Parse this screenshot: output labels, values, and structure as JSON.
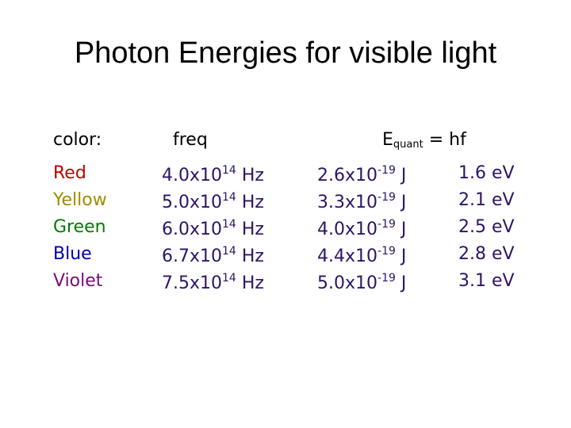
{
  "title": "Photon Energies for visible light",
  "header": {
    "color": "color:",
    "freq": "freq",
    "energy": {
      "symbol": "E",
      "subscript": "quant",
      "equation": "= hf"
    }
  },
  "rows": [
    {
      "color": "Red",
      "text_color": "#c00000",
      "freq": {
        "mantissa": "4.0x10",
        "exponent": "14",
        "unit": "Hz"
      },
      "energy_j": {
        "mantissa": "2.6x10",
        "exponent": "-19",
        "unit": "J"
      },
      "energy_ev": "1.6 eV"
    },
    {
      "color": "Yellow",
      "text_color": "#a08c00",
      "freq": {
        "mantissa": "5.0x10",
        "exponent": "14",
        "unit": "Hz"
      },
      "energy_j": {
        "mantissa": "3.3x10",
        "exponent": "-19",
        "unit": "J"
      },
      "energy_ev": "2.1 eV"
    },
    {
      "color": "Green",
      "text_color": "#007a00",
      "freq": {
        "mantissa": "6.0x10",
        "exponent": "14",
        "unit": "Hz"
      },
      "energy_j": {
        "mantissa": "4.0x10",
        "exponent": "-19",
        "unit": "J"
      },
      "energy_ev": "2.5 eV"
    },
    {
      "color": "Blue",
      "text_color": "#0000b0",
      "freq": {
        "mantissa": "6.7x10",
        "exponent": "14",
        "unit": "Hz"
      },
      "energy_j": {
        "mantissa": "4.4x10",
        "exponent": "-19",
        "unit": "J"
      },
      "energy_ev": "2.8 eV"
    },
    {
      "color": "Violet",
      "text_color": "#7a0a7a",
      "freq": {
        "mantissa": "7.5x10",
        "exponent": "14",
        "unit": "Hz"
      },
      "energy_j": {
        "mantissa": "5.0x10",
        "exponent": "-19",
        "unit": "J"
      },
      "energy_ev": "3.1 eV"
    }
  ]
}
